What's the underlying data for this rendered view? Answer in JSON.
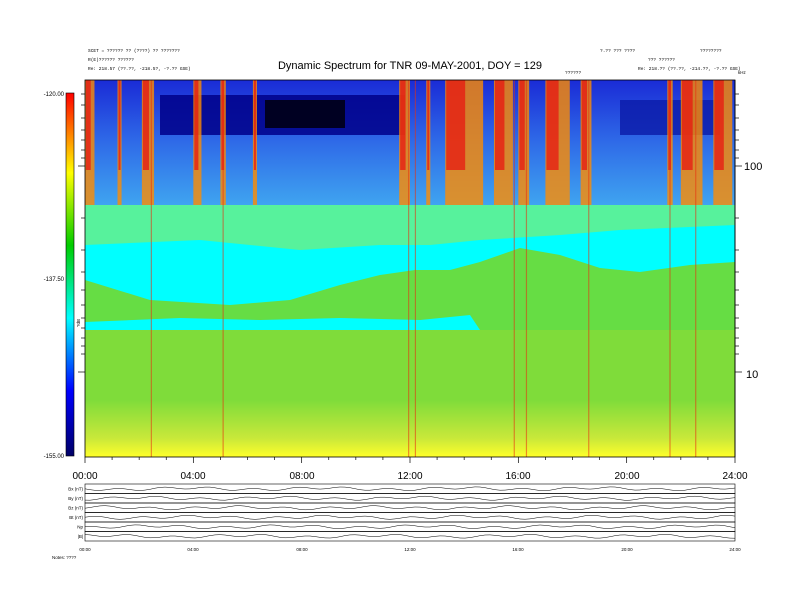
{
  "header": {
    "left_line1": "SCET = ?????? ?? (????) ??  ???????",
    "left_line2": "R(E)?????? ??????",
    "left_line3": "Re:  218.57 (??.??, -218.5?, -?.?? GSE)",
    "right_line1": "?.?? ??? ????",
    "right_line2": "??? ??????",
    "right_line3": "Re:  218.?? (??.??, -214.??, -?.?? GSE)",
    "far_right_line1": "????????",
    "center_small": "??????"
  },
  "chart_data": {
    "type": "heatmap",
    "title": "Dynamic Spectrum for TNR 09-MAY-2001, DOY = 129",
    "xlim": [
      0,
      24
    ],
    "x_ticks": [
      "00:00",
      "04:00",
      "08:00",
      "12:00",
      "16:00",
      "20:00",
      "24:00"
    ],
    "y_scale": "log",
    "y_ticks": [
      "100",
      "10"
    ],
    "y_unit_label": "kHz",
    "colorbar": {
      "label": "?dB",
      "ticks": [
        "-120.00",
        "-137.50",
        "-155.00"
      ],
      "range": [
        -155,
        -120
      ],
      "colors": [
        "#000066",
        "#0000ff",
        "#00ffff",
        "#00cc00",
        "#ffff00",
        "#ff0000"
      ]
    },
    "panels": [
      {
        "label": "Bx (nT)"
      },
      {
        "label": "By (nT)"
      },
      {
        "label": "Bz (nT)"
      },
      {
        "label": "Bt (nT)"
      },
      {
        "label": "Np"
      },
      {
        "label": "|B|"
      }
    ],
    "bottom_x_ticks": [
      "00:00",
      "04:00",
      "08:00",
      "12:00",
      "16:00",
      "20:00",
      "24:00"
    ],
    "bottom_left_label": "Notes:  ????"
  }
}
